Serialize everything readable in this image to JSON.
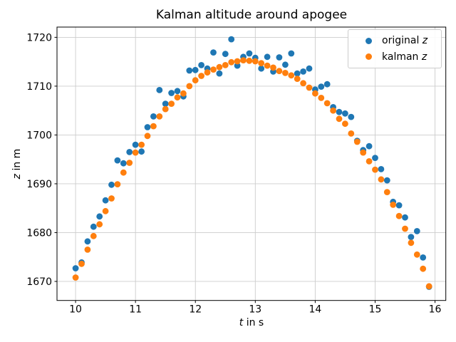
{
  "chart_data": {
    "type": "scatter",
    "title": "Kalman altitude around apogee",
    "xlabel_var": "t",
    "xlabel_rest": " in s",
    "ylabel_var": "z",
    "ylabel_rest": " in m",
    "grid": true,
    "legend_position": "upper right",
    "background_color": "#ffffff",
    "grid_color": "#cccccc",
    "spine_color": "#000000",
    "xlim": [
      9.69,
      16.18
    ],
    "ylim": [
      1666.1,
      1722.1
    ],
    "xticks": [
      10,
      11,
      12,
      13,
      14,
      15,
      16
    ],
    "yticks": [
      1670,
      1680,
      1690,
      1700,
      1710,
      1720
    ],
    "x_start": 10.0,
    "x_step": 0.1,
    "legend": [
      {
        "prefix": "original ",
        "var": "z",
        "color": "#1f77b4"
      },
      {
        "prefix": "kalman ",
        "var": "z",
        "color": "#ff7f0e"
      }
    ],
    "series": [
      {
        "name": "original z",
        "color": "#1f77b4",
        "values": [
          1672.7,
          1673.9,
          1678.2,
          1681.2,
          1683.3,
          1686.6,
          1689.8,
          1694.8,
          1694.2,
          1696.5,
          1698.0,
          1696.6,
          1701.6,
          1703.8,
          1709.2,
          1706.4,
          1708.6,
          1709.0,
          1707.9,
          1713.2,
          1713.3,
          1714.3,
          1713.6,
          1716.9,
          1712.6,
          1716.6,
          1719.6,
          1714.2,
          1716.0,
          1716.7,
          1715.8,
          1713.6,
          1716.0,
          1713.0,
          1715.9,
          1714.4,
          1716.7,
          1712.6,
          1713.0,
          1713.6,
          1709.3,
          1709.9,
          1710.4,
          1705.7,
          1704.7,
          1704.4,
          1703.7,
          1698.8,
          1696.9,
          1697.7,
          1695.3,
          1693.0,
          1690.7,
          1686.3,
          1685.6,
          1683.1,
          1679.1,
          1680.3,
          1674.9,
          1668.9
        ]
      },
      {
        "name": "kalman z",
        "color": "#ff7f0e",
        "values": [
          1670.8,
          1673.6,
          1676.5,
          1679.3,
          1681.7,
          1684.4,
          1687.0,
          1689.9,
          1692.3,
          1694.3,
          1696.4,
          1698.0,
          1699.8,
          1701.8,
          1703.8,
          1705.3,
          1706.4,
          1707.7,
          1708.5,
          1710.0,
          1711.2,
          1712.1,
          1712.8,
          1713.4,
          1713.9,
          1714.3,
          1714.9,
          1715.1,
          1715.3,
          1715.2,
          1715.1,
          1714.7,
          1714.2,
          1713.8,
          1713.1,
          1712.7,
          1712.2,
          1711.5,
          1710.6,
          1709.7,
          1708.5,
          1707.6,
          1706.5,
          1705.0,
          1703.3,
          1702.3,
          1700.3,
          1698.6,
          1696.4,
          1694.6,
          1692.9,
          1690.9,
          1688.3,
          1685.7,
          1683.4,
          1680.8,
          1677.9,
          1675.5,
          1672.6,
          1669.0
        ]
      }
    ],
    "layout": {
      "axes_rect": [
        80,
        38,
        545.7,
        383.7
      ],
      "marker_radius": 4.4,
      "tick_length": 3.5
    }
  }
}
